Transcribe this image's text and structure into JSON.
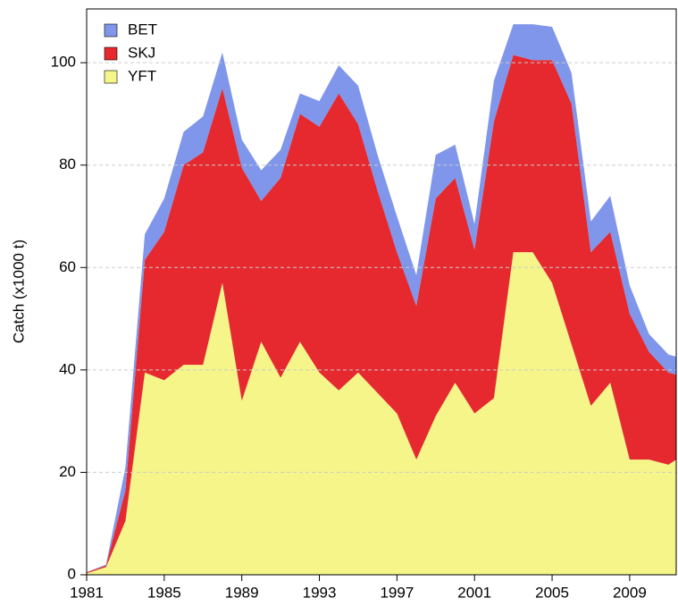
{
  "chart_data": {
    "type": "stacked-area",
    "y_label": "Catch (x1000 t)",
    "x": [
      1981,
      1982,
      1983,
      1984,
      1985,
      1986,
      1987,
      1988,
      1989,
      1990,
      1991,
      1992,
      1993,
      1994,
      1995,
      1996,
      1997,
      1998,
      1999,
      2000,
      2001,
      2002,
      2003,
      2004,
      2005,
      2006,
      2007,
      2008,
      2009,
      2010,
      2011,
      2012
    ],
    "series": [
      {
        "name": "YFT",
        "color": "#f5f58a",
        "values": [
          0.3,
          1.5,
          10.5,
          39.5,
          38,
          41,
          41,
          57,
          34,
          45.5,
          38.5,
          45.5,
          39.5,
          36,
          39.5,
          35.5,
          31.5,
          22.5,
          31,
          37.5,
          31.5,
          34.5,
          63,
          63,
          57,
          45,
          33,
          37.5,
          22.5,
          22.5,
          21.5,
          24
        ]
      },
      {
        "name": "SKJ",
        "color": "#e5292f",
        "values": [
          0.2,
          0.3,
          6,
          22,
          29,
          39,
          41.5,
          38,
          45.5,
          27.5,
          39,
          44.5,
          48,
          58,
          48.5,
          39.5,
          31.5,
          30,
          42.5,
          40,
          32,
          54,
          38.5,
          37.5,
          43.5,
          47,
          30,
          29.5,
          28.5,
          21,
          18,
          14.5
        ]
      },
      {
        "name": "BET",
        "color": "#7f96ea",
        "values": [
          0,
          0.2,
          4.5,
          5,
          6.5,
          6.5,
          7,
          7,
          5.5,
          6,
          5.5,
          4,
          5,
          5.5,
          7.5,
          7,
          7,
          6,
          8.5,
          6.5,
          5,
          8,
          6,
          7,
          6.5,
          6,
          6,
          7,
          5.5,
          3.5,
          3.5,
          3.5
        ]
      }
    ],
    "xlim": [
      1981,
      2011.4
    ],
    "xticks": [
      1981,
      1985,
      1989,
      1993,
      1997,
      2001,
      2005,
      2009
    ],
    "ylim": [
      0,
      110.5
    ],
    "yticks": [
      0,
      20,
      40,
      60,
      80,
      100
    ],
    "grid": true,
    "legend": "top-left"
  }
}
